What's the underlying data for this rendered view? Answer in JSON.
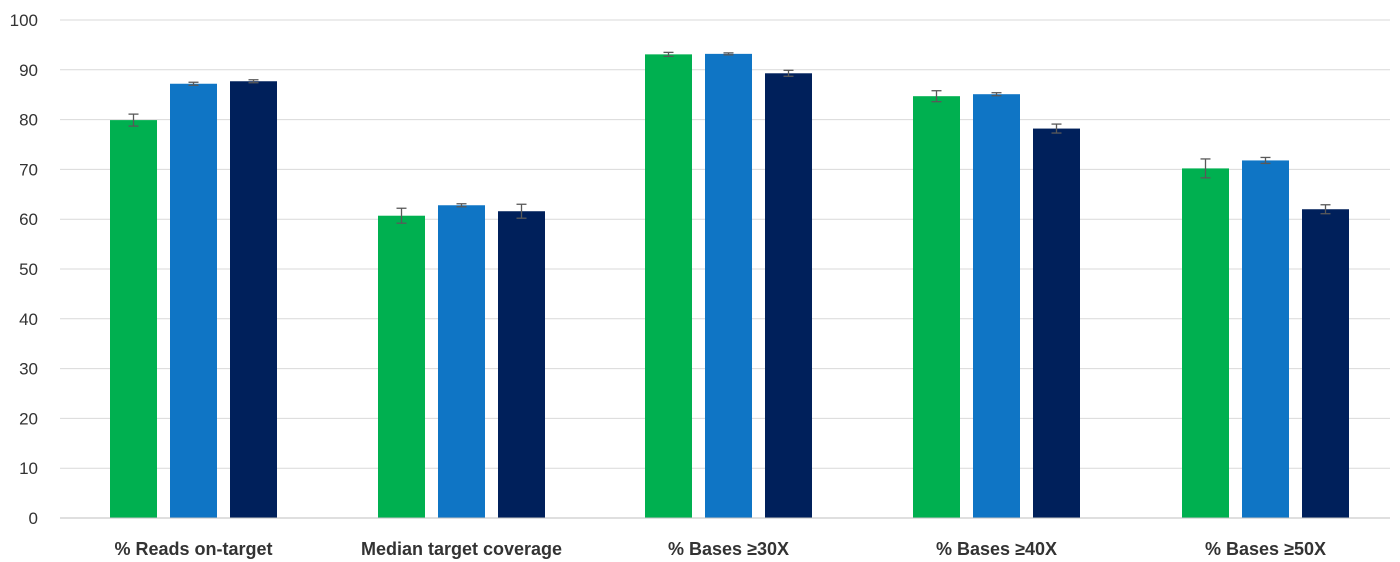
{
  "chart_data": {
    "type": "bar",
    "categories": [
      "% Reads on-target",
      "Median target coverage",
      "% Bases ≥30X",
      "% Bases ≥40X",
      "% Bases ≥50X"
    ],
    "series": [
      {
        "values": [
          79.9,
          60.7,
          93.1,
          84.7,
          70.2
        ],
        "errors": [
          1.2,
          1.5,
          0.4,
          1.1,
          1.9
        ],
        "color": "#00b050"
      },
      {
        "values": [
          87.2,
          62.8,
          93.2,
          85.1,
          71.8
        ],
        "errors": [
          0.3,
          0.3,
          0.2,
          0.3,
          0.6
        ],
        "color": "#0f75c5"
      },
      {
        "values": [
          87.7,
          61.6,
          89.3,
          78.2,
          62.0
        ],
        "errors": [
          0.3,
          1.4,
          0.6,
          0.9,
          0.9
        ],
        "color": "#00205b"
      }
    ],
    "yticks": [
      0,
      10,
      20,
      30,
      40,
      50,
      60,
      70,
      80,
      90,
      100
    ],
    "ylim": [
      0,
      100
    ],
    "grid": true,
    "title": "",
    "xlabel": "",
    "ylabel": "",
    "colors": {
      "grid": "#d9d9d9",
      "axis": "#bfbfbf",
      "error_bar": "#595959"
    }
  }
}
